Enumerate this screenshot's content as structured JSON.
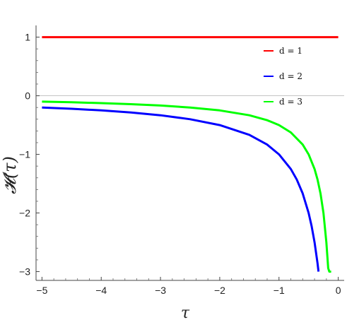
{
  "chart_data": {
    "type": "line",
    "title": "",
    "xlabel": "τ",
    "ylabel": "𝓗(τ)",
    "xlim": [
      -5.1,
      0.1
    ],
    "ylim": [
      -3.15,
      1.2
    ],
    "x_ticks": [
      -5,
      -4,
      -3,
      -2,
      -1,
      0
    ],
    "y_ticks": [
      1,
      0,
      -1,
      -2,
      -3
    ],
    "x_tick_labels": [
      "−5",
      "−4",
      "−3",
      "−2",
      "−1",
      "0"
    ],
    "y_tick_labels": [
      "1",
      "0",
      "−1",
      "−2",
      "−3"
    ],
    "grid": false,
    "legend_position": "top-right",
    "series": [
      {
        "name": "d = 1",
        "color": "#ff0000",
        "x": [
          -5,
          -4,
          -3,
          -2,
          -1,
          -0.5,
          0
        ],
        "y": [
          1,
          1,
          1,
          1,
          1,
          1,
          1
        ]
      },
      {
        "name": "d = 2",
        "color": "#0000ff",
        "x": [
          -5,
          -4.5,
          -4,
          -3.5,
          -3,
          -2.5,
          -2,
          -1.5,
          -1.2,
          -1,
          -0.8,
          -0.7,
          -0.6,
          -0.5,
          -0.45,
          -0.4,
          -0.35,
          -0.333
        ],
        "y": [
          -0.2,
          -0.222,
          -0.25,
          -0.286,
          -0.333,
          -0.4,
          -0.5,
          -0.667,
          -0.833,
          -1.0,
          -1.25,
          -1.429,
          -1.667,
          -2.0,
          -2.222,
          -2.5,
          -2.857,
          -3.0
        ]
      },
      {
        "name": "d = 3",
        "color": "#00ff00",
        "x": [
          -5,
          -4.5,
          -4,
          -3.5,
          -3,
          -2.5,
          -2,
          -1.5,
          -1.2,
          -1,
          -0.8,
          -0.6,
          -0.5,
          -0.4,
          -0.35,
          -0.3,
          -0.25,
          -0.2,
          -0.17,
          -0.15,
          -0.13,
          -0.12
        ],
        "y": [
          -0.1,
          -0.111,
          -0.125,
          -0.143,
          -0.167,
          -0.2,
          -0.25,
          -0.333,
          -0.417,
          -0.5,
          -0.625,
          -0.833,
          -1.0,
          -1.25,
          -1.429,
          -1.667,
          -2.0,
          -2.5,
          -2.941,
          -3.0,
          -3.0,
          -3.0
        ]
      }
    ]
  }
}
